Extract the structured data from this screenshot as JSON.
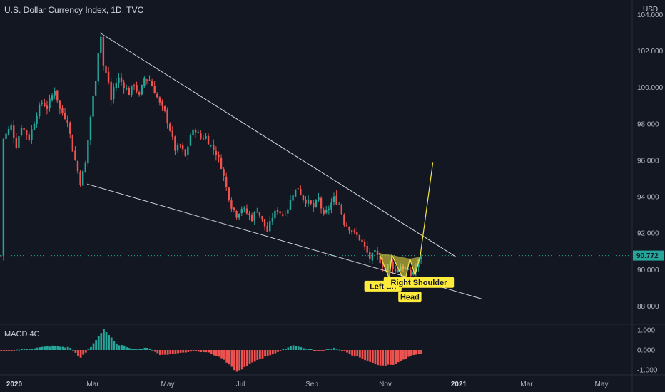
{
  "header": {
    "title": "U.S. Dollar Currency Index, 1D, TVC",
    "currency": "USD"
  },
  "indicator": {
    "label": "MACD 4C"
  },
  "chart_data": [
    {
      "type": "candlestick",
      "title": "U.S. Dollar Currency Index, 1D, TVC",
      "ylim": [
        87,
        104.8
      ],
      "y_ticks": [
        "88.000",
        "90.000",
        "92.000",
        "94.000",
        "96.000",
        "98.000",
        "100.000",
        "102.000",
        "104.000"
      ],
      "x_ticks": [
        {
          "label": "2020",
          "bold": true
        },
        {
          "label": "Mar",
          "bold": false
        },
        {
          "label": "May",
          "bold": false
        },
        {
          "label": "Jul",
          "bold": false
        },
        {
          "label": "Sep",
          "bold": false
        },
        {
          "label": "Nov",
          "bold": false
        },
        {
          "label": "2021",
          "bold": true
        },
        {
          "label": "Mar",
          "bold": false
        },
        {
          "label": "May",
          "bold": false
        }
      ],
      "last_price": "90.772",
      "colors": {
        "up": "#26a69a",
        "down": "#ef5350",
        "trendline": "#d1d4dc",
        "pattern": "#f5e642",
        "last_price": "#26a69a"
      },
      "price_path": [
        [
          1,
          97.2
        ],
        [
          4,
          97.9
        ],
        [
          6,
          96.8
        ],
        [
          8,
          97.9
        ],
        [
          11,
          97.2
        ],
        [
          14,
          98.6
        ],
        [
          16,
          99.2
        ],
        [
          18,
          98.9
        ],
        [
          21,
          99.9
        ],
        [
          23,
          98.8
        ],
        [
          26,
          98.2
        ],
        [
          28,
          96.6
        ],
        [
          29,
          96.0
        ],
        [
          31,
          94.8
        ],
        [
          33,
          95.8
        ],
        [
          35,
          98.4
        ],
        [
          37,
          100.5
        ],
        [
          38,
          102.0
        ],
        [
          39,
          102.8
        ],
        [
          40,
          101.2
        ],
        [
          42,
          100.3
        ],
        [
          43,
          99.3
        ],
        [
          44,
          100.0
        ],
        [
          46,
          100.5
        ],
        [
          48,
          100.1
        ],
        [
          50,
          99.7
        ],
        [
          52,
          100.2
        ],
        [
          54,
          99.5
        ],
        [
          56,
          100.5
        ],
        [
          58,
          100.4
        ],
        [
          60,
          99.8
        ],
        [
          62,
          99.1
        ],
        [
          64,
          98.6
        ],
        [
          66,
          97.7
        ],
        [
          68,
          96.6
        ],
        [
          70,
          96.8
        ],
        [
          72,
          96.2
        ],
        [
          74,
          97.4
        ],
        [
          76,
          97.7
        ],
        [
          78,
          97.2
        ],
        [
          80,
          97.3
        ],
        [
          82,
          96.8
        ],
        [
          84,
          96.4
        ],
        [
          86,
          95.7
        ],
        [
          88,
          94.5
        ],
        [
          90,
          93.5
        ],
        [
          92,
          93.0
        ],
        [
          94,
          93.4
        ],
        [
          96,
          93.1
        ],
        [
          98,
          92.8
        ],
        [
          100,
          93.3
        ],
        [
          102,
          92.7
        ],
        [
          104,
          92.1
        ],
        [
          106,
          92.9
        ],
        [
          108,
          93.3
        ],
        [
          110,
          93.0
        ],
        [
          112,
          93.4
        ],
        [
          114,
          94.2
        ],
        [
          116,
          94.5
        ],
        [
          118,
          93.9
        ],
        [
          120,
          93.7
        ],
        [
          122,
          93.4
        ],
        [
          124,
          93.9
        ],
        [
          126,
          92.9
        ],
        [
          128,
          93.4
        ],
        [
          130,
          93.9
        ],
        [
          132,
          93.6
        ],
        [
          134,
          92.6
        ],
        [
          136,
          92.3
        ],
        [
          138,
          92.0
        ],
        [
          140,
          91.7
        ],
        [
          142,
          91.2
        ],
        [
          144,
          90.6
        ],
        [
          146,
          90.9
        ],
        [
          148,
          90.5
        ],
        [
          150,
          90.0
        ],
        [
          152,
          90.4
        ],
        [
          154,
          89.9
        ],
        [
          156,
          90.2
        ],
        [
          158,
          90.0
        ],
        [
          160,
          89.7
        ],
        [
          162,
          90.1
        ],
        [
          164,
          90.77
        ]
      ],
      "trendlines": [
        {
          "from": [
            39,
            103.0
          ],
          "to": [
            178,
            90.7
          ]
        },
        {
          "from": [
            34,
            94.7
          ],
          "to": [
            188,
            88.4
          ]
        }
      ],
      "pattern_points": [
        [
          148,
          90.9
        ],
        [
          152,
          89.5
        ],
        [
          153,
          90.8
        ],
        [
          158,
          89.3
        ],
        [
          160,
          90.6
        ],
        [
          162,
          89.7
        ],
        [
          164,
          90.7
        ],
        [
          169,
          95.9
        ]
      ],
      "annotations": [
        {
          "text": "Left Sh",
          "x": 149.5,
          "y": 89.1
        },
        {
          "text": "Right Shoulder",
          "x": 163.5,
          "y": 89.3
        },
        {
          "text": "Head",
          "x": 160,
          "y": 88.5
        }
      ]
    },
    {
      "type": "bar",
      "title": "MACD 4C",
      "ylim": [
        -1.25,
        1.25
      ],
      "y_ticks": [
        "1.000",
        "0.000",
        "-1.000"
      ],
      "colors": {
        "positive": "#26a69a",
        "negative": "#ef5350"
      },
      "bar_profile": [
        [
          0,
          -0.05
        ],
        [
          10,
          0.05
        ],
        [
          20,
          0.2
        ],
        [
          27,
          0.12
        ],
        [
          31,
          -0.4
        ],
        [
          35,
          0.15
        ],
        [
          40,
          1.05
        ],
        [
          45,
          0.3
        ],
        [
          52,
          0.05
        ],
        [
          58,
          0.1
        ],
        [
          62,
          -0.25
        ],
        [
          70,
          -0.15
        ],
        [
          75,
          -0.05
        ],
        [
          80,
          -0.1
        ],
        [
          86,
          -0.4
        ],
        [
          92,
          -1.1
        ],
        [
          100,
          -0.5
        ],
        [
          108,
          -0.1
        ],
        [
          114,
          0.25
        ],
        [
          119,
          0.05
        ],
        [
          124,
          -0.05
        ],
        [
          130,
          0.1
        ],
        [
          136,
          -0.2
        ],
        [
          142,
          -0.5
        ],
        [
          148,
          -0.8
        ],
        [
          154,
          -0.7
        ],
        [
          160,
          -0.3
        ],
        [
          164,
          -0.2
        ]
      ]
    }
  ]
}
